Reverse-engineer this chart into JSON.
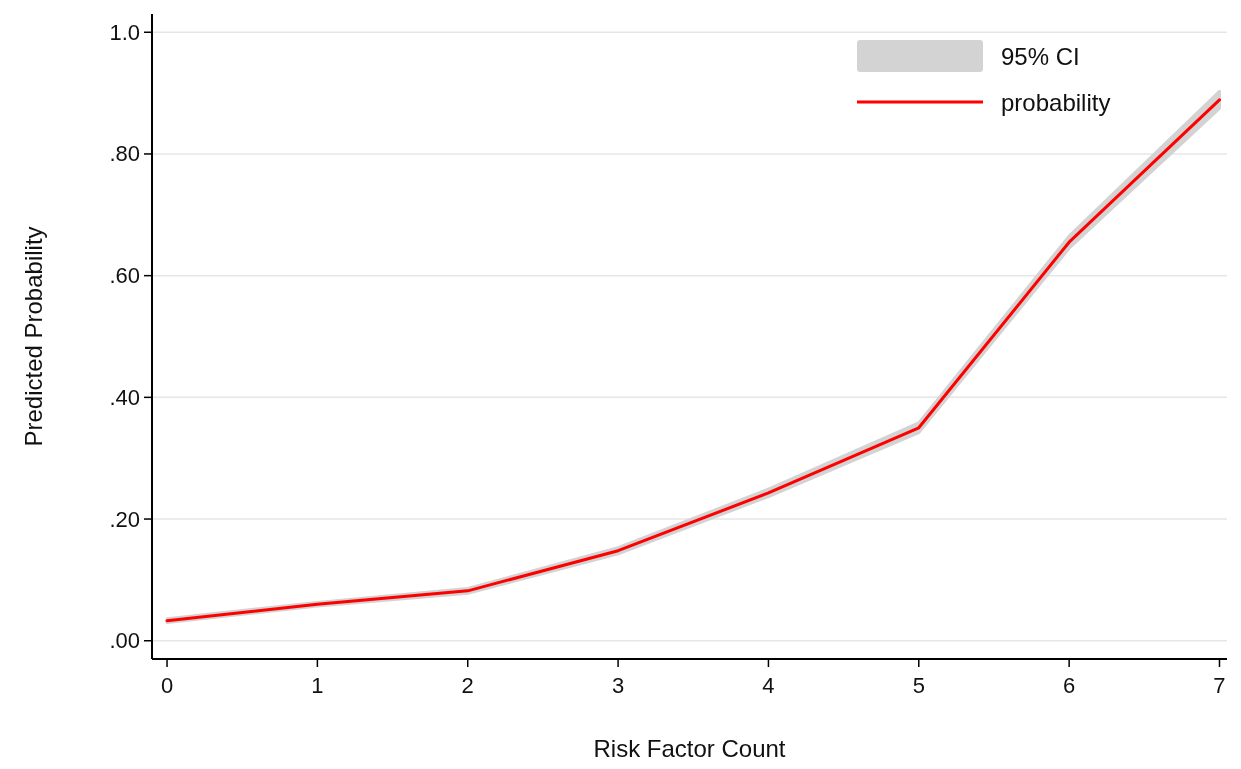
{
  "chart_data": {
    "type": "line",
    "xlabel": "Risk Factor Count",
    "ylabel": "Predicted Probability",
    "x": [
      0,
      1,
      2,
      3,
      4,
      5,
      6,
      7
    ],
    "series": [
      {
        "name": "probability",
        "color": "#ff0000",
        "values": [
          0.033,
          0.06,
          0.082,
          0.148,
          0.243,
          0.35,
          0.655,
          0.889
        ],
        "lower": [
          0.03,
          0.057,
          0.078,
          0.143,
          0.237,
          0.342,
          0.645,
          0.875
        ],
        "upper": [
          0.036,
          0.063,
          0.086,
          0.153,
          0.249,
          0.358,
          0.665,
          0.903
        ]
      }
    ],
    "annotations": [
      "95% CI"
    ],
    "xlim": [
      -0.1,
      7.05
    ],
    "xticks": [
      0,
      1,
      2,
      3,
      4,
      5,
      6,
      7
    ],
    "ylim": [
      -0.03,
      1.03
    ],
    "yticks": [
      {
        "value": 0,
        "label": ".00"
      },
      {
        "value": 0.2,
        "label": ".20"
      },
      {
        "value": 0.4,
        "label": ".40"
      },
      {
        "value": 0.6,
        "label": ".60"
      },
      {
        "value": 0.8,
        "label": ".80"
      },
      {
        "value": 1,
        "label": "1.0"
      }
    ],
    "grid": "y",
    "legend": "top right",
    "line_style": "solid",
    "marker": "none"
  }
}
